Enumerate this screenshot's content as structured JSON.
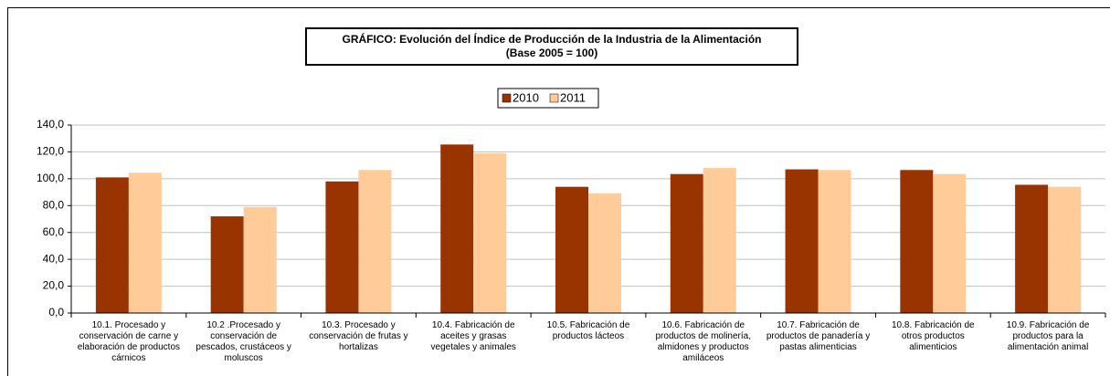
{
  "chart_data": {
    "type": "bar",
    "title": "GRÁFICO: Evolución del Índice de Producción de la Industria de la Alimentación",
    "subtitle": "(Base 2005 = 100)",
    "categories": [
      "10.1. Procesado y conservación de carne y elaboración de productos cárnicos",
      "10.2 .Procesado y conservación de pescados, crustáceos y moluscos",
      "10.3. Procesado y conservación de frutas y hortalizas",
      "10.4. Fabricación de aceites y grasas vegetales y animales",
      "10.5. Fabricación de productos lácteos",
      "10.6. Fabricación de productos de molinería, almidones y productos amiláceos",
      "10.7. Fabricación de productos de panadería y pastas alimenticias",
      "10.8. Fabricación de otros productos alimenticios",
      "10.9. Fabricación de productos para la alimentación animal"
    ],
    "series": [
      {
        "name": "2010",
        "color": "#993300",
        "values": [
          101,
          72,
          98,
          125.5,
          94,
          103.5,
          107,
          106.5,
          95.5
        ]
      },
      {
        "name": "2011",
        "color": "#FFCC99",
        "values": [
          104.5,
          79,
          106.5,
          119,
          89,
          108,
          106.5,
          103.5,
          94
        ]
      }
    ],
    "ylim": [
      0,
      140
    ],
    "yticks": [
      {
        "value": 0,
        "label": "0,0"
      },
      {
        "value": 20,
        "label": "20,0"
      },
      {
        "value": 40,
        "label": "40,0"
      },
      {
        "value": 60,
        "label": "60,0"
      },
      {
        "value": 80,
        "label": "80,0"
      },
      {
        "value": 100,
        "label": "100,0"
      },
      {
        "value": 120,
        "label": "120,0"
      },
      {
        "value": 140,
        "label": "140,0"
      }
    ],
    "grid": true,
    "legend": "top"
  }
}
